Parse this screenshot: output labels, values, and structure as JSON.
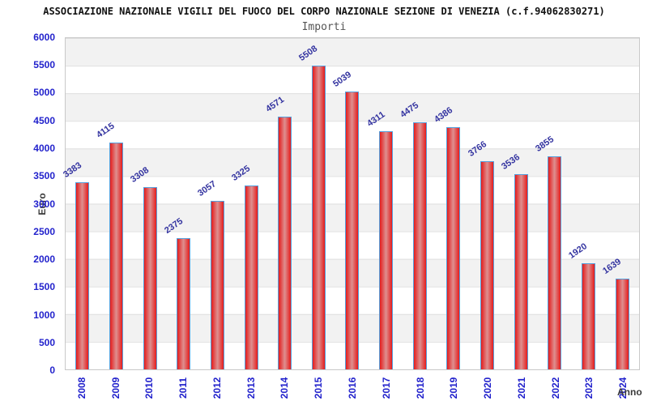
{
  "header": {
    "title": "ASSOCIAZIONE NAZIONALE VIGILI DEL FUOCO DEL CORPO NAZIONALE SEZIONE DI VENEZIA (c.f.94062830271)",
    "subtitle": "Importi"
  },
  "chart_data": {
    "type": "bar",
    "title": "ASSOCIAZIONE NAZIONALE VIGILI DEL FUOCO DEL CORPO NAZIONALE SEZIONE DI VENEZIA (c.f.94062830271)",
    "subtitle": "Importi",
    "categories": [
      "2008",
      "2009",
      "2010",
      "2011",
      "2012",
      "2013",
      "2014",
      "2015",
      "2016",
      "2017",
      "2018",
      "2019",
      "2020",
      "2021",
      "2022",
      "2023",
      "2024"
    ],
    "values": [
      3383,
      4115,
      3308,
      2375,
      3057,
      3325,
      4571,
      5508,
      5039,
      4311,
      4475,
      4386,
      3766,
      3536,
      3855,
      1920,
      1639
    ],
    "xlabel": "Anno",
    "ylabel": "Euro",
    "ylim": [
      0,
      6000
    ],
    "yticks": [
      0,
      500,
      1000,
      1500,
      2000,
      2500,
      3000,
      3500,
      4000,
      4500,
      5000,
      5500,
      6000
    ],
    "legend": "none",
    "grid": "horizontal-bands-500",
    "band_colors": [
      "#f2f2f2",
      "#ffffff"
    ],
    "colors": {
      "bar_fill_edge": "#e41c1c",
      "bar_fill_center": "#de9090",
      "bar_border": "#55a0dd",
      "tick_label": "#2222cc",
      "value_label": "#3333a0",
      "axis_title": "#3a3a3a",
      "plot_border": "#c9c9c9"
    }
  }
}
